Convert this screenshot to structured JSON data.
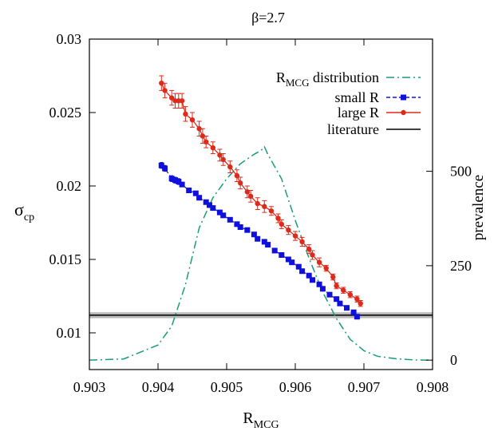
{
  "chart_data": {
    "type": "line",
    "title": "β=2.7",
    "xlabel": {
      "main": "R",
      "sub": "MCG"
    },
    "ylabel": {
      "main": "σ",
      "sub": "cp"
    },
    "y2label": "prevalence",
    "xlim": [
      0.903,
      0.908
    ],
    "ylim": [
      0.0075,
      0.03
    ],
    "y2lim": [
      -25,
      850
    ],
    "xticks": [
      "0.903",
      "0.904",
      "0.905",
      "0.906",
      "0.907",
      "0.908"
    ],
    "yticks": [
      "0.01",
      "0.015",
      "0.02",
      "0.025",
      "0.03"
    ],
    "y2ticks": [
      "0",
      "250",
      "500"
    ],
    "grid": false,
    "legend_position": "top-right",
    "legend": [
      {
        "main": "R",
        "sub": "MCG",
        "rest": " distribution"
      },
      {
        "main": "small R",
        "sub": "",
        "rest": ""
      },
      {
        "main": "large R",
        "sub": "",
        "rest": ""
      },
      {
        "main": "literature",
        "sub": "",
        "rest": ""
      }
    ],
    "colors": {
      "distribution": "#1a9c7a",
      "small": "#1010dd",
      "large": "#dd2a1b",
      "literature": "#000000",
      "literature_band": "#b8b8b8"
    },
    "literature": {
      "value": 0.0112,
      "error": 0.0002
    },
    "distribution": {
      "axis": "y2",
      "x": [
        0.903,
        0.9035,
        0.904,
        0.9042,
        0.9044,
        0.9046,
        0.9048,
        0.905,
        0.9052,
        0.9054,
        0.9055,
        0.90555,
        0.9056,
        0.9058,
        0.906,
        0.9062,
        0.9064,
        0.9066,
        0.9068,
        0.907,
        0.9072,
        0.9075,
        0.9078,
        0.908
      ],
      "y": [
        0,
        3,
        40,
        90,
        200,
        350,
        430,
        480,
        520,
        545,
        555,
        565,
        545,
        480,
        370,
        270,
        180,
        110,
        55,
        25,
        10,
        3,
        0,
        0
      ]
    },
    "series": [
      {
        "name": "small R",
        "axis": "y",
        "x": [
          0.90405,
          0.9041,
          0.9042,
          0.90425,
          0.9043,
          0.90435,
          0.90445,
          0.90455,
          0.9046,
          0.9047,
          0.90475,
          0.9048,
          0.9049,
          0.90495,
          0.90505,
          0.90515,
          0.9052,
          0.9053,
          0.9054,
          0.90545,
          0.90555,
          0.9056,
          0.9057,
          0.9058,
          0.9059,
          0.90595,
          0.90605,
          0.9061,
          0.9062,
          0.90625,
          0.90635,
          0.9064,
          0.9065,
          0.9066,
          0.90665,
          0.90675,
          0.90685,
          0.9069
        ],
        "y": [
          0.0214,
          0.0212,
          0.0205,
          0.0204,
          0.0203,
          0.0201,
          0.0197,
          0.0195,
          0.0192,
          0.0189,
          0.0187,
          0.0185,
          0.0182,
          0.018,
          0.0177,
          0.0174,
          0.0172,
          0.017,
          0.0167,
          0.0164,
          0.0162,
          0.016,
          0.0156,
          0.0153,
          0.015,
          0.0148,
          0.0145,
          0.0142,
          0.0139,
          0.0136,
          0.0133,
          0.013,
          0.0126,
          0.0123,
          0.012,
          0.0117,
          0.0114,
          0.0111
        ],
        "yerr": [
          0.0002,
          0.0002,
          0.0002,
          0.0002,
          0.0002,
          0.00015,
          0.00015,
          0.00015,
          0.00015,
          0.00012,
          0.00012,
          0.0001,
          0.0001,
          0.0001,
          0.0001,
          0.0001,
          0.0001,
          0.0001,
          0.0001,
          0.0001,
          0.0001,
          0.0001,
          0.0001,
          0.0001,
          0.0001,
          0.0001,
          0.0001,
          0.0001,
          0.0001,
          0.0001,
          0.0001,
          0.0001,
          0.0001,
          0.0001,
          0.0001,
          0.0001,
          0.0001,
          0.0001
        ]
      },
      {
        "name": "large R",
        "axis": "y",
        "x": [
          0.90405,
          0.9041,
          0.9042,
          0.90425,
          0.9043,
          0.90435,
          0.9044,
          0.9045,
          0.9046,
          0.90465,
          0.9047,
          0.9048,
          0.9049,
          0.90495,
          0.90505,
          0.90515,
          0.9052,
          0.9053,
          0.90535,
          0.90545,
          0.90555,
          0.90565,
          0.90575,
          0.9058,
          0.9059,
          0.906,
          0.9061,
          0.9062,
          0.90625,
          0.90635,
          0.90645,
          0.90655,
          0.9066,
          0.9067,
          0.9068,
          0.9069,
          0.90695
        ],
        "y": [
          0.027,
          0.0265,
          0.026,
          0.0258,
          0.0258,
          0.0258,
          0.0249,
          0.0245,
          0.0239,
          0.0234,
          0.023,
          0.0226,
          0.0221,
          0.0218,
          0.0213,
          0.0207,
          0.0202,
          0.0196,
          0.0193,
          0.0188,
          0.0186,
          0.0183,
          0.0178,
          0.0174,
          0.017,
          0.0166,
          0.0162,
          0.0157,
          0.0153,
          0.0148,
          0.0144,
          0.0138,
          0.0132,
          0.0129,
          0.0126,
          0.0123,
          0.012
        ],
        "yerr": [
          0.0005,
          0.0005,
          0.0005,
          0.0005,
          0.0005,
          0.0005,
          0.0005,
          0.0005,
          0.0005,
          0.0005,
          0.0004,
          0.0004,
          0.0004,
          0.0004,
          0.0004,
          0.0004,
          0.0004,
          0.0004,
          0.0004,
          0.0004,
          0.0004,
          0.0003,
          0.0003,
          0.0003,
          0.0003,
          0.0003,
          0.0003,
          0.0003,
          0.0003,
          0.0003,
          0.0002,
          0.0002,
          0.0002,
          0.0002,
          0.0002,
          0.0002,
          0.0002
        ]
      }
    ]
  }
}
